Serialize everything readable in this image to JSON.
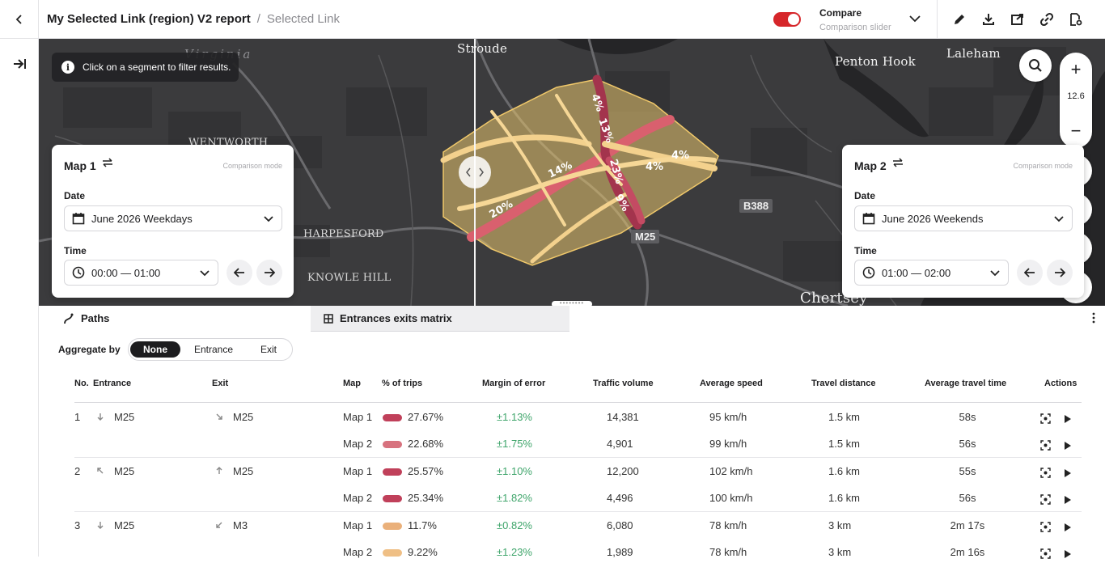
{
  "header": {
    "report_title": "My Selected Link (region) V2 report",
    "separator": "/",
    "subtitle": "Selected Link",
    "compare_title": "Compare",
    "compare_subtitle": "Comparison slider",
    "compare_enabled": true,
    "toggle_color": "#d6262a"
  },
  "map": {
    "info_text": "Click on a segment to filter results.",
    "zoom_level": "12.6",
    "places": {
      "stroude": "Stroude",
      "penton_hook": "Penton Hook",
      "laleham": "Laleham",
      "virginia": "Virginia",
      "wentworth": "WENTWORTH",
      "harpesford": "HARPESFORD",
      "knowle_hill": "KNOWLE HILL",
      "chertsey": "Chertsey"
    },
    "roads": {
      "b388": "B388",
      "m25": "M25"
    },
    "pct_labels": [
      "20%",
      "14%",
      "23%",
      "9%",
      "4%",
      "4%",
      "13%",
      "4%"
    ]
  },
  "map1": {
    "title": "Map 1",
    "mode": "Comparison mode",
    "date_label": "Date",
    "date_value": "June 2026 Weekdays",
    "time_label": "Time",
    "time_value": "00:00 — 01:00"
  },
  "map2": {
    "title": "Map 2",
    "mode": "Comparison mode",
    "date_label": "Date",
    "date_value": "June 2026 Weekends",
    "time_label": "Time",
    "time_value": "01:00 — 02:00"
  },
  "tabs": {
    "paths": "Paths",
    "matrix": "Entrances exits matrix"
  },
  "aggregate": {
    "label": "Aggregate by",
    "options": [
      "None",
      "Entrance",
      "Exit"
    ],
    "selected": "None"
  },
  "table": {
    "headers": {
      "no": "No.",
      "entrance": "Entrance",
      "exit": "Exit",
      "map": "Map",
      "pct": "% of trips",
      "moe": "Margin of error",
      "volume": "Traffic volume",
      "speed": "Average speed",
      "distance": "Travel distance",
      "time": "Average travel time",
      "actions": "Actions"
    },
    "groups": [
      {
        "no": "1",
        "entrance": "M25",
        "exit": "M25",
        "rows": [
          {
            "map": "Map 1",
            "pct": "27.67%",
            "moe": "±1.13%",
            "volume": "14,381",
            "speed": "95 km/h",
            "distance": "1.5 km",
            "time": "58s",
            "bar_color": "#c0405a"
          },
          {
            "map": "Map 2",
            "pct": "22.68%",
            "moe": "±1.75%",
            "volume": "4,901",
            "speed": "99 km/h",
            "distance": "1.5 km",
            "time": "56s",
            "bar_color": "#d7727e"
          }
        ]
      },
      {
        "no": "2",
        "entrance": "M25",
        "exit": "M25",
        "rows": [
          {
            "map": "Map 1",
            "pct": "25.57%",
            "moe": "±1.10%",
            "volume": "12,200",
            "speed": "102 km/h",
            "distance": "1.6 km",
            "time": "55s",
            "bar_color": "#c0405a"
          },
          {
            "map": "Map 2",
            "pct": "25.34%",
            "moe": "±1.82%",
            "volume": "4,496",
            "speed": "100 km/h",
            "distance": "1.6 km",
            "time": "56s",
            "bar_color": "#c0405a"
          }
        ]
      },
      {
        "no": "3",
        "entrance": "M25",
        "exit": "M3",
        "rows": [
          {
            "map": "Map 1",
            "pct": "11.7%",
            "moe": "±0.82%",
            "volume": "6,080",
            "speed": "78 km/h",
            "distance": "3 km",
            "time": "2m 17s",
            "bar_color": "#eab07a"
          },
          {
            "map": "Map 2",
            "pct": "9.22%",
            "moe": "±1.23%",
            "volume": "1,989",
            "speed": "78 km/h",
            "distance": "3 km",
            "time": "2m 16s",
            "bar_color": "#efbf85"
          }
        ]
      }
    ]
  }
}
